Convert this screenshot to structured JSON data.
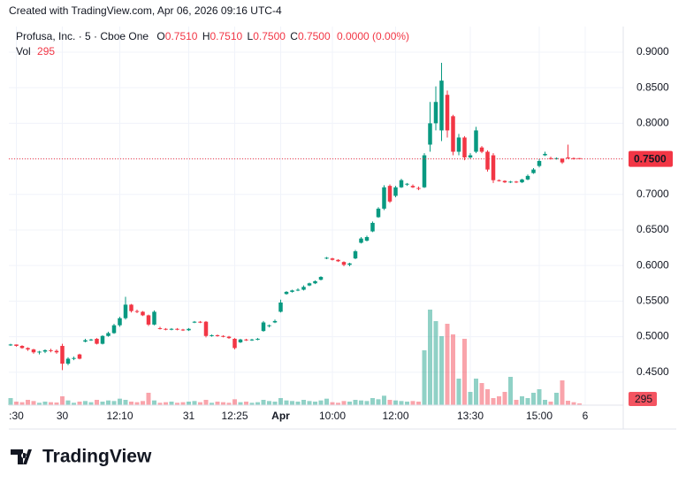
{
  "header": "Created with TradingView.com, Apr 06, 2026 09:16 UTC-4",
  "logo": "TradingView",
  "chart_data": {
    "type": "candlestick",
    "symbol": "Profusa, Inc. · 5 · Cboe One",
    "legend": {
      "O_label": "O",
      "O": {
        "value": 0.751,
        "label": "0.7510"
      },
      "H_label": "H",
      "H": {
        "value": 0.751,
        "label": "0.7510"
      },
      "L_label": "L",
      "L": {
        "value": 0.75,
        "label": "0.7500"
      },
      "C_label": "C",
      "C": {
        "value": 0.75,
        "label": "0.7500"
      },
      "change": "0.0000 (0.00%)"
    },
    "volume_label": "Vol",
    "last_volume": 295,
    "last_price": {
      "value": 0.75,
      "label": "0.7500"
    },
    "up_color": "#089981",
    "down_color": "#f23645",
    "grid": true,
    "ylim": [
      0.4037,
      0.9236
    ],
    "yticks": [
      {
        "value": 0.9,
        "label": "0.9000"
      },
      {
        "value": 0.85,
        "label": "0.8500"
      },
      {
        "value": 0.8,
        "label": "0.8000"
      },
      {
        "value": 0.75,
        "label": "0.7500"
      },
      {
        "value": 0.7,
        "label": "0.7000"
      },
      {
        "value": 0.65,
        "label": "0.6500"
      },
      {
        "value": 0.6,
        "label": "0.6000"
      },
      {
        "value": 0.55,
        "label": "0.5500"
      },
      {
        "value": 0.5,
        "label": "0.5000"
      },
      {
        "value": 0.45,
        "label": "0.4500"
      }
    ],
    "categories": [
      null,
      ":30",
      null,
      null,
      null,
      null,
      null,
      null,
      null,
      "30",
      null,
      null,
      null,
      null,
      null,
      null,
      null,
      null,
      null,
      "12:10",
      null,
      null,
      null,
      null,
      null,
      null,
      null,
      null,
      null,
      null,
      null,
      "31",
      null,
      null,
      null,
      null,
      null,
      null,
      null,
      "12:25",
      null,
      null,
      null,
      null,
      null,
      null,
      null,
      "Apr",
      null,
      null,
      null,
      null,
      null,
      null,
      null,
      null,
      "10:00",
      null,
      null,
      null,
      null,
      null,
      null,
      null,
      null,
      null,
      null,
      "12:00",
      null,
      null,
      null,
      null,
      null,
      null,
      null,
      null,
      null,
      null,
      null,
      null,
      "13:30",
      null,
      null,
      null,
      null,
      null,
      null,
      null,
      null,
      null,
      null,
      null,
      "15:00",
      null,
      null,
      null,
      null,
      null,
      null,
      null,
      "6"
    ],
    "ohlc": [
      [
        0.488,
        0.49,
        0.487,
        0.489
      ],
      [
        0.489,
        0.489,
        0.486,
        0.487
      ],
      [
        0.487,
        0.488,
        0.483,
        0.484
      ],
      [
        0.484,
        0.485,
        0.48,
        0.482
      ],
      [
        0.482,
        0.483,
        0.476,
        0.478
      ],
      [
        0.478,
        0.48,
        0.475,
        0.479
      ],
      [
        0.479,
        0.482,
        0.477,
        0.481
      ],
      [
        0.481,
        0.483,
        0.478,
        0.48
      ],
      [
        0.48,
        0.482,
        0.476,
        0.478
      ],
      [
        0.487,
        0.49,
        0.453,
        0.462
      ],
      [
        0.462,
        0.471,
        0.46,
        0.469
      ],
      [
        0.469,
        0.472,
        0.467,
        0.47
      ],
      [
        0.475,
        0.476,
        0.468,
        0.469
      ],
      [
        0.493,
        0.497,
        0.492,
        0.495
      ],
      [
        0.495,
        0.497,
        0.494,
        0.496
      ],
      [
        0.497,
        0.498,
        0.489,
        0.49
      ],
      [
        0.49,
        0.502,
        0.489,
        0.501
      ],
      [
        0.501,
        0.507,
        0.5,
        0.505
      ],
      [
        0.505,
        0.518,
        0.504,
        0.516
      ],
      [
        0.516,
        0.528,
        0.514,
        0.526
      ],
      [
        0.526,
        0.556,
        0.524,
        0.545
      ],
      [
        0.545,
        0.546,
        0.534,
        0.536
      ],
      [
        0.536,
        0.538,
        0.533,
        0.535
      ],
      [
        0.535,
        0.536,
        0.529,
        0.53
      ],
      [
        0.53,
        0.531,
        0.515,
        0.517
      ],
      [
        0.517,
        0.537,
        0.516,
        0.535
      ],
      [
        0.512,
        0.514,
        0.51,
        0.511
      ],
      [
        0.511,
        0.512,
        0.509,
        0.51
      ],
      [
        0.51,
        0.512,
        0.509,
        0.511
      ],
      [
        0.511,
        0.512,
        0.509,
        0.51
      ],
      [
        0.51,
        0.511,
        0.508,
        0.509
      ],
      [
        0.509,
        0.512,
        0.508,
        0.511
      ],
      [
        0.52,
        0.522,
        0.519,
        0.521
      ],
      [
        0.521,
        0.522,
        0.519,
        0.52
      ],
      [
        0.521,
        0.522,
        0.499,
        0.501
      ],
      [
        0.501,
        0.503,
        0.5,
        0.502
      ],
      [
        0.502,
        0.503,
        0.5,
        0.501
      ],
      [
        0.501,
        0.502,
        0.499,
        0.5
      ],
      [
        0.5,
        0.501,
        0.497,
        0.498
      ],
      [
        0.497,
        0.498,
        0.482,
        0.484
      ],
      [
        0.492,
        0.497,
        0.491,
        0.496
      ],
      [
        0.496,
        0.497,
        0.494,
        0.495
      ],
      [
        0.495,
        0.497,
        0.494,
        0.496
      ],
      [
        0.496,
        0.498,
        0.495,
        0.497
      ],
      [
        0.508,
        0.522,
        0.507,
        0.52
      ],
      [
        0.515,
        0.517,
        0.513,
        0.516
      ],
      [
        0.52,
        0.524,
        0.519,
        0.522
      ],
      [
        0.535,
        0.552,
        0.534,
        0.548
      ],
      [
        0.56,
        0.564,
        0.559,
        0.563
      ],
      [
        0.563,
        0.566,
        0.562,
        0.565
      ],
      [
        0.565,
        0.568,
        0.564,
        0.566
      ],
      [
        0.566,
        0.572,
        0.565,
        0.57
      ],
      [
        0.572,
        0.576,
        0.571,
        0.575
      ],
      [
        0.575,
        0.579,
        0.574,
        0.578
      ],
      [
        0.58,
        0.585,
        0.579,
        0.584
      ],
      [
        0.61,
        0.612,
        0.609,
        0.611
      ],
      [
        0.61,
        0.611,
        0.607,
        0.608
      ],
      [
        0.608,
        0.609,
        0.605,
        0.606
      ],
      [
        0.605,
        0.606,
        0.599,
        0.601
      ],
      [
        0.601,
        0.604,
        0.599,
        0.603
      ],
      [
        0.61,
        0.622,
        0.609,
        0.62
      ],
      [
        0.632,
        0.64,
        0.631,
        0.638
      ],
      [
        0.635,
        0.642,
        0.634,
        0.64
      ],
      [
        0.648,
        0.662,
        0.647,
        0.66
      ],
      [
        0.668,
        0.682,
        0.667,
        0.68
      ],
      [
        0.68,
        0.713,
        0.678,
        0.71
      ],
      [
        0.712,
        0.714,
        0.688,
        0.69
      ],
      [
        0.698,
        0.712,
        0.696,
        0.71
      ],
      [
        0.71,
        0.722,
        0.709,
        0.72
      ],
      [
        0.714,
        0.716,
        0.712,
        0.715
      ],
      [
        0.712,
        0.714,
        0.709,
        0.71
      ],
      [
        0.709,
        0.711,
        0.706,
        0.708
      ],
      [
        0.71,
        0.758,
        0.709,
        0.755
      ],
      [
        0.77,
        0.83,
        0.76,
        0.8
      ],
      [
        0.8,
        0.852,
        0.79,
        0.83
      ],
      [
        0.79,
        0.885,
        0.775,
        0.86
      ],
      [
        0.84,
        0.846,
        0.78,
        0.79
      ],
      [
        0.81,
        0.812,
        0.755,
        0.76
      ],
      [
        0.76,
        0.785,
        0.755,
        0.78
      ],
      [
        0.78,
        0.782,
        0.748,
        0.752
      ],
      [
        0.752,
        0.758,
        0.75,
        0.755
      ],
      [
        0.76,
        0.795,
        0.758,
        0.79
      ],
      [
        0.766,
        0.768,
        0.758,
        0.76
      ],
      [
        0.76,
        0.762,
        0.732,
        0.735
      ],
      [
        0.755,
        0.758,
        0.716,
        0.72
      ],
      [
        0.72,
        0.721,
        0.718,
        0.719
      ],
      [
        0.719,
        0.72,
        0.716,
        0.717
      ],
      [
        0.717,
        0.719,
        0.716,
        0.718
      ],
      [
        0.718,
        0.719,
        0.716,
        0.717
      ],
      [
        0.717,
        0.722,
        0.716,
        0.721
      ],
      [
        0.721,
        0.728,
        0.72,
        0.726
      ],
      [
        0.73,
        0.737,
        0.729,
        0.735
      ],
      [
        0.74,
        0.75,
        0.738,
        0.747
      ],
      [
        0.755,
        0.76,
        0.754,
        0.757
      ],
      [
        0.751,
        0.753,
        0.749,
        0.75
      ],
      [
        0.75,
        0.752,
        0.749,
        0.751
      ],
      [
        0.75,
        0.751,
        0.743,
        0.745
      ],
      [
        0.752,
        0.77,
        0.75,
        0.751
      ],
      [
        0.751,
        0.752,
        0.749,
        0.75
      ],
      [
        0.751,
        0.751,
        0.75,
        0.75
      ],
      null
    ],
    "volume": [
      1200,
      600,
      500,
      900,
      700,
      400,
      600,
      500,
      450,
      1500,
      800,
      400,
      600,
      700,
      500,
      900,
      600,
      800,
      700,
      1100,
      900,
      600,
      500,
      700,
      2100,
      800,
      400,
      500,
      600,
      400,
      500,
      600,
      700,
      500,
      900,
      400,
      600,
      500,
      400,
      1000,
      500,
      600,
      400,
      500,
      900,
      700,
      600,
      1200,
      800,
      700,
      600,
      900,
      700,
      600,
      800,
      1100,
      500,
      400,
      700,
      600,
      900,
      800,
      700,
      1200,
      1000,
      1600,
      900,
      800,
      700,
      600,
      700,
      600,
      9300,
      16200,
      14250,
      11700,
      13800,
      12000,
      4500,
      11250,
      2250,
      4500,
      3750,
      2700,
      1200,
      1500,
      2250,
      4800,
      900,
      1500,
      1200,
      2100,
      2700,
      900,
      600,
      2100,
      4200,
      750,
      500,
      295,
      null
    ]
  }
}
